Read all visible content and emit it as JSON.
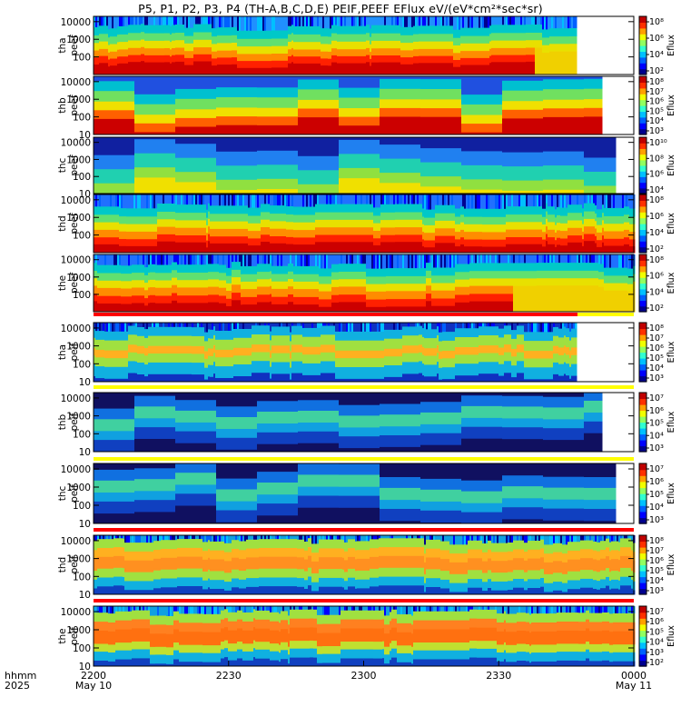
{
  "title": "P5, P1, P2, P3, P4 (TH-A,B,C,D,E) PEIF,PEEF EFlux eV/(eV*cm²*sec*sr)",
  "xaxis": {
    "row1_label": "hhmm",
    "row2_label": "2025",
    "ticks": [
      {
        "t": 0,
        "time": "2200",
        "date": "May 10"
      },
      {
        "t": 30,
        "time": "2230",
        "date": ""
      },
      {
        "t": 60,
        "time": "2300",
        "date": ""
      },
      {
        "t": 90,
        "time": "2330",
        "date": ""
      },
      {
        "t": 120,
        "time": "0000",
        "date": "May 11"
      }
    ],
    "range_minutes": [
      0,
      120
    ]
  },
  "chart_data": [
    {
      "type": "heatmap",
      "probe": "tha",
      "product": "peef",
      "ylabel": [
        "tha",
        "peef"
      ],
      "yticks": [
        "10000",
        "1000",
        "100"
      ],
      "ylim": [
        10,
        20000
      ],
      "yscale": "log",
      "zlabel": "Eflux",
      "zticks": [
        "10⁸",
        "10⁶",
        "10⁴",
        "10²"
      ],
      "data_end_minute": 107,
      "style": "fine",
      "bands": [
        [
          0.0,
          "#cc0000"
        ],
        [
          0.18,
          "#ff2000"
        ],
        [
          0.3,
          "#ff8c00"
        ],
        [
          0.42,
          "#e8e000"
        ],
        [
          0.55,
          "#60e070"
        ],
        [
          0.68,
          "#00c8c8"
        ],
        [
          0.82,
          "#2090ff"
        ]
      ],
      "cut_minute": 98,
      "post_cut_color": "#f0d000"
    },
    {
      "type": "heatmap",
      "probe": "thb",
      "product": "peef",
      "ylabel": [
        "thb",
        "peef"
      ],
      "yticks": [
        "10000",
        "1000",
        "100",
        "10"
      ],
      "ylim": [
        10,
        20000
      ],
      "yscale": "log",
      "zlabel": "Eflux",
      "zticks": [
        "10⁸",
        "10⁷",
        "10⁶",
        "10⁵",
        "10⁴",
        "10³"
      ],
      "data_end_minute": 112,
      "style": "blocks",
      "bands": [
        [
          0.0,
          "#cc0000"
        ],
        [
          0.2,
          "#ff6000"
        ],
        [
          0.35,
          "#f0e000"
        ],
        [
          0.5,
          "#70e060"
        ],
        [
          0.68,
          "#00c0d0"
        ],
        [
          0.85,
          "#2050e0"
        ]
      ]
    },
    {
      "type": "heatmap",
      "probe": "thc",
      "product": "peef",
      "ylabel": [
        "thc",
        "peef"
      ],
      "yticks": [
        "10000",
        "1000",
        "100",
        "10"
      ],
      "ylim": [
        10,
        20000
      ],
      "yscale": "log",
      "zlabel": "Eflux",
      "zticks": [
        "10¹⁰",
        "10⁸",
        "10⁶",
        "10⁴"
      ],
      "data_end_minute": 115,
      "style": "blocks",
      "bands": [
        [
          0.0,
          "#f0e000"
        ],
        [
          0.12,
          "#90e040"
        ],
        [
          0.3,
          "#20d0b0"
        ],
        [
          0.55,
          "#2080f0"
        ],
        [
          0.8,
          "#1020a0"
        ]
      ]
    },
    {
      "type": "heatmap",
      "probe": "thd",
      "product": "peef",
      "ylabel": [
        "thd",
        "peef"
      ],
      "yticks": [
        "10000",
        "1000",
        "100"
      ],
      "ylim": [
        10,
        20000
      ],
      "yscale": "log",
      "zlabel": "Eflux",
      "zticks": [
        "10⁸",
        "10⁶",
        "10⁴",
        "10²"
      ],
      "data_end_minute": 120,
      "style": "fine",
      "bands": [
        [
          0.0,
          "#cc0000"
        ],
        [
          0.15,
          "#ff2000"
        ],
        [
          0.27,
          "#ff8c00"
        ],
        [
          0.4,
          "#e8e000"
        ],
        [
          0.53,
          "#60e070"
        ],
        [
          0.66,
          "#00c8c8"
        ],
        [
          0.8,
          "#2070ff"
        ]
      ]
    },
    {
      "type": "heatmap",
      "probe": "the",
      "product": "peef",
      "ylabel": [
        "the",
        "peef"
      ],
      "yticks": [
        "10000",
        "1000",
        "100"
      ],
      "ylim": [
        10,
        20000
      ],
      "yscale": "log",
      "zlabel": "Eflux",
      "zticks": [
        "10⁸",
        "10⁶",
        "10⁴",
        "10²"
      ],
      "data_end_minute": 120,
      "style": "fine",
      "bands": [
        [
          0.0,
          "#cc0000"
        ],
        [
          0.15,
          "#ff2000"
        ],
        [
          0.28,
          "#ff8c00"
        ],
        [
          0.42,
          "#e8e000"
        ],
        [
          0.55,
          "#60e070"
        ],
        [
          0.68,
          "#00c8c8"
        ],
        [
          0.82,
          "#2070ff"
        ]
      ],
      "cut_minute": 93,
      "post_cut_color": "#f0d000"
    },
    {
      "type": "heatmap",
      "probe": "tha",
      "product": "peif",
      "ylabel": [
        "tha",
        "peif"
      ],
      "yticks": [
        "10000",
        "1000",
        "100",
        "10"
      ],
      "ylim": [
        10,
        20000
      ],
      "yscale": "log",
      "zlabel": "Eflux",
      "zticks": [
        "10⁸",
        "10⁷",
        "10⁶",
        "10⁵",
        "10⁴",
        "10³"
      ],
      "data_end_minute": 107,
      "style": "fine",
      "bands": [
        [
          0.0,
          "#1030c0"
        ],
        [
          0.1,
          "#10b0e0"
        ],
        [
          0.3,
          "#a0e040"
        ],
        [
          0.45,
          "#ffb020"
        ],
        [
          0.58,
          "#a0e040"
        ],
        [
          0.75,
          "#10b0e0"
        ],
        [
          0.9,
          "#1030c0"
        ]
      ]
    },
    {
      "type": "heatmap",
      "probe": "thb",
      "product": "peif",
      "ylabel": [
        "thb",
        "peif"
      ],
      "yticks": [
        "10000",
        "1000",
        "100",
        "10"
      ],
      "ylim": [
        10,
        20000
      ],
      "yscale": "log",
      "zlabel": "Eflux",
      "zticks": [
        "10⁷",
        "10⁶",
        "10⁵",
        "10⁴",
        "10³"
      ],
      "data_end_minute": 112,
      "style": "blocks",
      "bands": [
        [
          0.0,
          "#101060"
        ],
        [
          0.15,
          "#1040c0"
        ],
        [
          0.35,
          "#10a0e0"
        ],
        [
          0.5,
          "#40d0a0"
        ],
        [
          0.7,
          "#1070e0"
        ],
        [
          0.88,
          "#101060"
        ]
      ]
    },
    {
      "type": "heatmap",
      "probe": "thc",
      "product": "peif",
      "ylabel": [
        "thc",
        "peif"
      ],
      "yticks": [
        "10000",
        "1000",
        "100",
        "10"
      ],
      "ylim": [
        10,
        20000
      ],
      "yscale": "log",
      "zlabel": "Eflux",
      "zticks": [
        "10⁷",
        "10⁶",
        "10⁵",
        "10⁴",
        "10³"
      ],
      "data_end_minute": 115,
      "style": "blocks",
      "bands": [
        [
          0.0,
          "#101060"
        ],
        [
          0.15,
          "#1040c0"
        ],
        [
          0.35,
          "#10a0e0"
        ],
        [
          0.5,
          "#40d0a0"
        ],
        [
          0.7,
          "#1070e0"
        ],
        [
          0.88,
          "#101060"
        ]
      ]
    },
    {
      "type": "heatmap",
      "probe": "thd",
      "product": "peif",
      "ylabel": [
        "thd",
        "peif"
      ],
      "yticks": [
        "10000",
        "1000",
        "100",
        "10"
      ],
      "ylim": [
        10,
        20000
      ],
      "yscale": "log",
      "zlabel": "Eflux",
      "zticks": [
        "10⁸",
        "10⁷",
        "10⁶",
        "10⁵",
        "10⁴",
        "10³"
      ],
      "data_end_minute": 120,
      "style": "fine",
      "bands": [
        [
          0.0,
          "#1040c0"
        ],
        [
          0.1,
          "#10b0e0"
        ],
        [
          0.25,
          "#a0e040"
        ],
        [
          0.4,
          "#ff9020"
        ],
        [
          0.6,
          "#ffb020"
        ],
        [
          0.75,
          "#a0e040"
        ],
        [
          0.9,
          "#10a0e0"
        ]
      ]
    },
    {
      "type": "heatmap",
      "probe": "the",
      "product": "peif",
      "ylabel": [
        "the",
        "peif"
      ],
      "yticks": [
        "10000",
        "1000",
        "100",
        "10"
      ],
      "ylim": [
        10,
        20000
      ],
      "yscale": "log",
      "zlabel": "Eflux",
      "zticks": [
        "10⁷",
        "10⁶",
        "10⁵",
        "10⁴",
        "10³",
        "10²"
      ],
      "data_end_minute": 120,
      "style": "fine",
      "bands": [
        [
          0.0,
          "#1040c0"
        ],
        [
          0.1,
          "#10b0e0"
        ],
        [
          0.25,
          "#c0e030"
        ],
        [
          0.38,
          "#ff7010"
        ],
        [
          0.6,
          "#ff8020"
        ],
        [
          0.75,
          "#a0e040"
        ],
        [
          0.9,
          "#10a0e0"
        ]
      ]
    }
  ]
}
